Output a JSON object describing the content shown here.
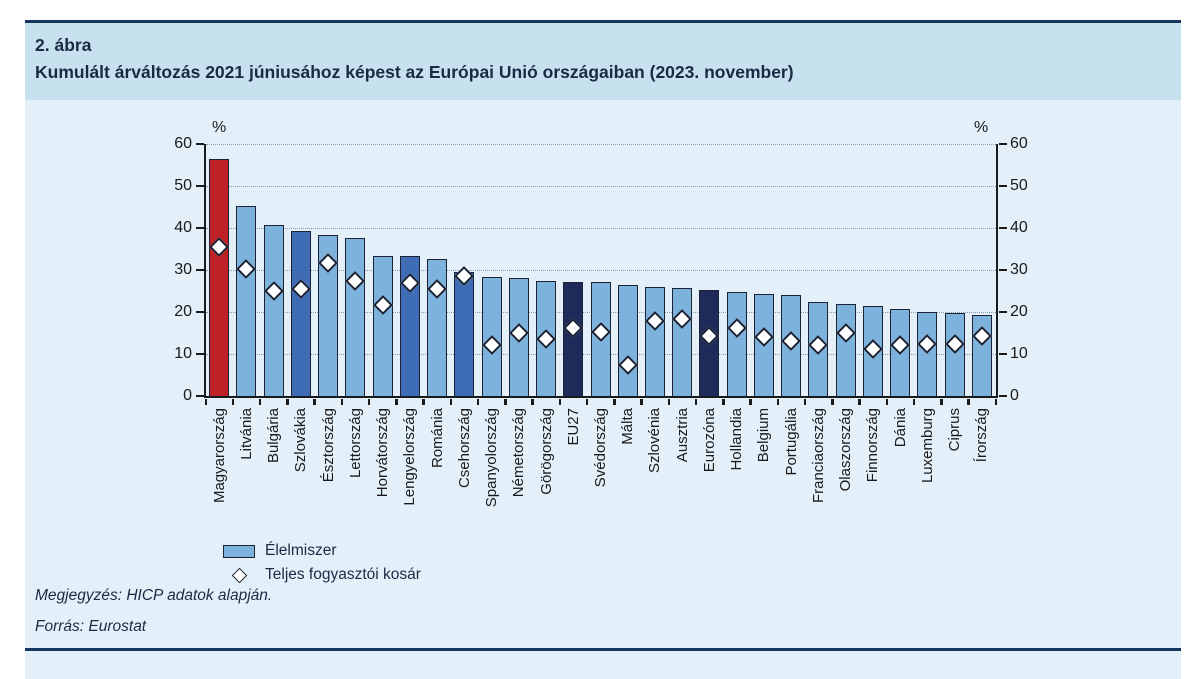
{
  "panel": {
    "figure_label": "2. ábra",
    "title": "Kumulált árváltozás 2021 júniusához képest az Európai Unió országaiban (2023. november)",
    "note": "Megjegyzés: HICP adatok alapján.",
    "source": "Forrás: Eurostat"
  },
  "legend": {
    "bar_label": "Élelmiszer",
    "marker_label": "Teljes fogyasztói kosár"
  },
  "chart_data": {
    "type": "bar",
    "unit": "%",
    "axis_label_left": "%",
    "axis_label_right": "%",
    "ylim": [
      0,
      60
    ],
    "yticks": [
      0,
      10,
      20,
      30,
      40,
      50,
      60
    ],
    "grid": "horizontal-dotted",
    "legend_position": "bottom-left",
    "categories": [
      "Magyarország",
      "Litvánia",
      "Bulgária",
      "Szlovákia",
      "Észtország",
      "Lettország",
      "Horvátország",
      "Lengyelország",
      "Románia",
      "Csehország",
      "Spanyolország",
      "Németország",
      "Görögország",
      "EU27",
      "Svédország",
      "Málta",
      "Szlovénia",
      "Ausztria",
      "Eurozóna",
      "Hollandia",
      "Belgium",
      "Portugália",
      "Franciaország",
      "Olaszország",
      "Finnország",
      "Dánia",
      "Luxemburg",
      "Ciprus",
      "Írország"
    ],
    "series": [
      {
        "name": "Élelmiszer",
        "type": "bar",
        "values": [
          56.5,
          45.3,
          40.8,
          39.3,
          38.3,
          37.6,
          33.4,
          33.3,
          32.6,
          29.5,
          28.3,
          28.2,
          27.5,
          27.2,
          27.1,
          26.5,
          26.0,
          25.6,
          25.3,
          24.7,
          24.4,
          24.0,
          22.4,
          22.0,
          21.4,
          20.6,
          20.0,
          19.8,
          19.2
        ]
      },
      {
        "name": "Teljes fogyasztói kosár",
        "type": "scatter-diamond",
        "values": [
          36.2,
          30.9,
          25.8,
          26.2,
          32.3,
          28.1,
          22.5,
          27.7,
          26.3,
          29.3,
          12.8,
          15.7,
          14.4,
          17.0,
          15.9,
          8.0,
          18.6,
          19.0,
          15.0,
          16.8,
          14.7,
          13.7,
          12.9,
          15.6,
          11.8,
          12.9,
          13.0,
          13.2,
          15.1
        ]
      }
    ],
    "bar_color_keys": [
      "red",
      "light",
      "light",
      "medium",
      "light",
      "light",
      "light",
      "medium",
      "light",
      "medium",
      "light",
      "light",
      "light",
      "navy",
      "light",
      "light",
      "light",
      "light",
      "navy",
      "light",
      "light",
      "light",
      "light",
      "light",
      "light",
      "light",
      "light",
      "light",
      "light"
    ],
    "palette": {
      "red": "#BE2126",
      "light": "#7DB2DC",
      "medium": "#3E6DB5",
      "navy": "#1E2A5A"
    }
  },
  "colors": {
    "page_bg": "#FFFFFF",
    "panel_bg": "#E4F0F9",
    "title_band_bg": "#C8E1EF",
    "rule_navy": "#17365D",
    "text_navy": "#1B2A44",
    "axis": "#1A1A1A",
    "gridline": "#8A9AA8",
    "marker_fill": "#FFFFFF",
    "marker_border": "#1B2233"
  }
}
